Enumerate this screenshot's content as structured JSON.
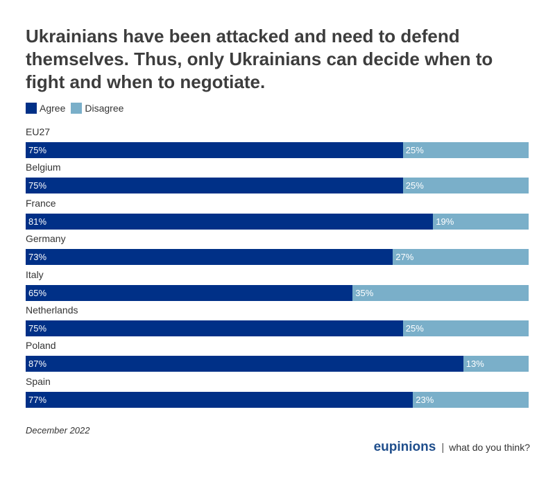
{
  "chart_data": {
    "type": "bar",
    "orientation": "horizontal-stacked-100",
    "title": "Ukrainians have been attacked and need to defend themselves. Thus, only Ukrainians can decide when to fight and when to negotiate.",
    "categories": [
      "EU27",
      "Belgium",
      "France",
      "Germany",
      "Italy",
      "Netherlands",
      "Poland",
      "Spain"
    ],
    "series": [
      {
        "name": "Agree",
        "color": "#003087",
        "values": [
          75,
          75,
          81,
          73,
          65,
          75,
          87,
          77
        ]
      },
      {
        "name": "Disagree",
        "color": "#7aafc9",
        "values": [
          25,
          25,
          19,
          27,
          35,
          25,
          13,
          23
        ]
      }
    ],
    "value_suffix": "%",
    "xlim": [
      0,
      100
    ],
    "legend_position": "top-left",
    "grid": false
  },
  "date": "December 2022",
  "footer": {
    "brand": "eupinions",
    "separator": "|",
    "tagline": "what do you think?"
  }
}
